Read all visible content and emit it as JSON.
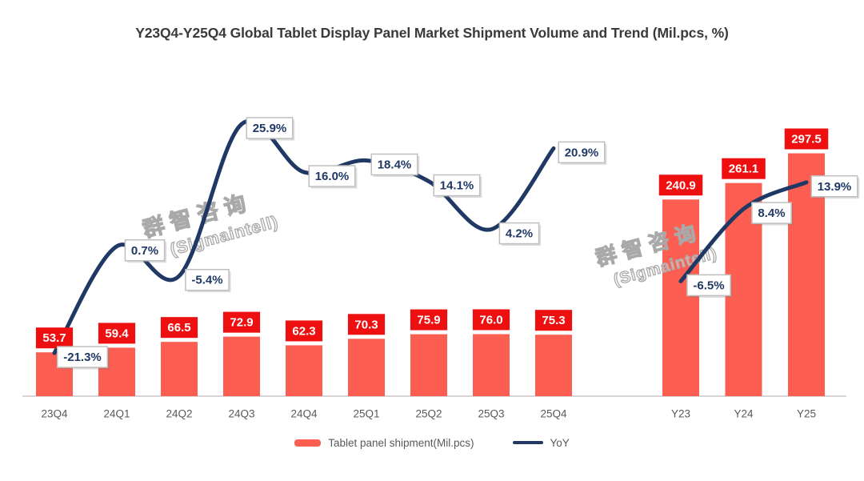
{
  "title": "Y23Q4-Y25Q4 Global Tablet Display Panel Market Shipment Volume and Trend (Mil.pcs, %)",
  "watermark": {
    "line1": "群智咨询",
    "line2": "(Sigmaintell)"
  },
  "legend": {
    "bar": "Tablet panel shipment(Mil.pcs)",
    "line": "YoY"
  },
  "colors": {
    "bar_fill": "#FC5E52",
    "bar_label_bg": "#EE1010",
    "bar_label_text": "#FFFFFF",
    "line": "#1F3864",
    "yoy_label_text": "#1F3864",
    "yoy_label_border": "#BFBFBF",
    "yoy_label_bg": "#FFFFFF",
    "axis_line": "#D6D6D6",
    "tick_text": "#595959",
    "title_text": "#3A3A3A",
    "watermark_outline": "#A9A9A9"
  },
  "chart_data": {
    "type": "bar+line combo",
    "title": "Y23Q4-Y25Q4 Global Tablet Display Panel Market Shipment Volume and Trend (Mil.pcs, %)",
    "categories": [
      "23Q4",
      "24Q1",
      "24Q2",
      "24Q3",
      "24Q4",
      "25Q1",
      "25Q2",
      "25Q3",
      "25Q4",
      "Y23",
      "Y24",
      "Y25"
    ],
    "group_split_index": 9,
    "series": [
      {
        "name": "Tablet panel shipment(Mil.pcs)",
        "type": "bar",
        "values": [
          53.7,
          59.4,
          66.5,
          72.9,
          62.3,
          70.3,
          75.9,
          76.0,
          75.3,
          240.9,
          261.1,
          297.5
        ]
      },
      {
        "name": "YoY",
        "type": "line",
        "unit": "%",
        "values": [
          -21.3,
          0.7,
          -5.4,
          25.9,
          16.0,
          18.4,
          14.1,
          4.2,
          20.9,
          -6.5,
          8.4,
          13.9
        ]
      }
    ],
    "legend_position": "bottom",
    "gridlines": false,
    "value_axis_visible": false
  }
}
